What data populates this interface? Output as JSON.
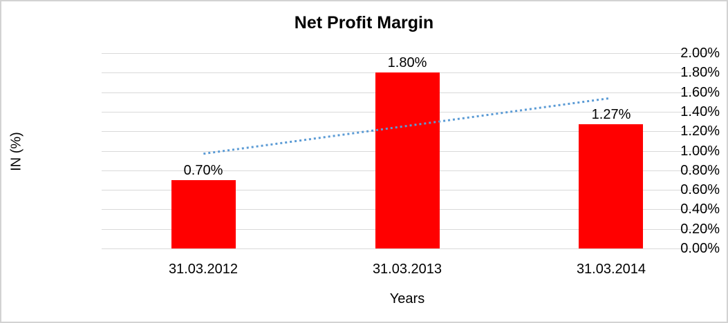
{
  "chart_data": {
    "type": "bar",
    "title": "Net Profit Margin",
    "xlabel": "Years",
    "ylabel": "IN (%)",
    "categories": [
      "31.03.2012",
      "31.03.2013",
      "31.03.2014"
    ],
    "values": [
      0.7,
      1.8,
      1.27
    ],
    "data_labels": [
      "0.70%",
      "1.80%",
      "1.27%"
    ],
    "ylim": [
      0,
      2.0
    ],
    "ytick_step": 0.2,
    "ytick_labels": [
      "2.00%",
      "1.80%",
      "1.60%",
      "1.40%",
      "1.20%",
      "1.00%",
      "0.80%",
      "0.60%",
      "0.40%",
      "0.20%",
      "0.00%"
    ],
    "grid": true,
    "legend_position": "none",
    "bar_color": "#ff0000",
    "gridline_color": "#d9d9d9",
    "text_color": "#000000",
    "trendline": {
      "type": "linear",
      "style": "dotted",
      "color": "#5b9bd5",
      "start_value": 0.97,
      "end_value": 1.54
    }
  }
}
